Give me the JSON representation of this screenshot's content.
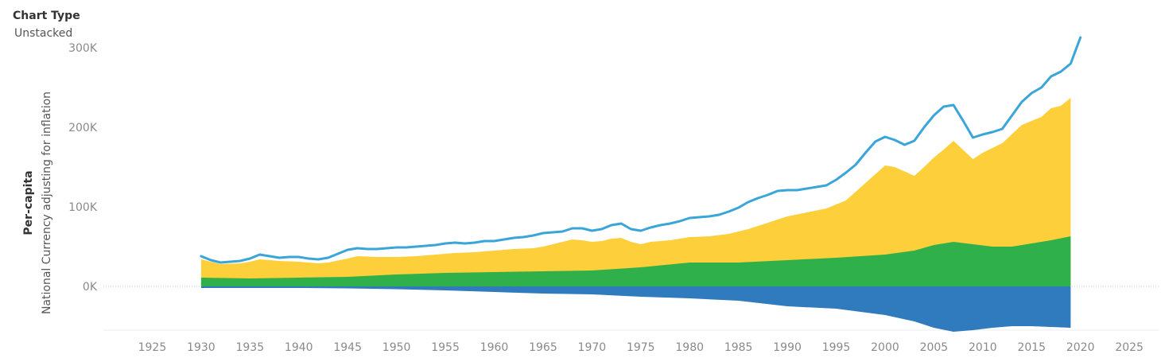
{
  "control": {
    "title": "Chart Type",
    "value": "Unstacked"
  },
  "chart_data": {
    "type": "area",
    "ylabel_line1": "Per-capita",
    "ylabel_line2": "National Currency adjusting for inflation",
    "xlim": [
      1920,
      2028
    ],
    "ylim": [
      -75000,
      330000
    ],
    "x_ticks": [
      1925,
      1930,
      1935,
      1940,
      1945,
      1950,
      1955,
      1960,
      1965,
      1970,
      1975,
      1980,
      1985,
      1990,
      1995,
      2000,
      2005,
      2010,
      2015,
      2020,
      2025
    ],
    "x_tick_labels": [
      "1925",
      "1930",
      "1935",
      "1940",
      "1945",
      "1950",
      "1955",
      "1960",
      "1965",
      "1970",
      "1975",
      "1980",
      "1985",
      "1990",
      "1995",
      "2000",
      "2005",
      "2010",
      "2015",
      "2020",
      "2025"
    ],
    "y_ticks": [
      0,
      100000,
      200000,
      300000
    ],
    "y_tick_labels": [
      "0K",
      "100K",
      "200K",
      "300K"
    ],
    "colors": {
      "yellow": "#FDCF3A",
      "green": "#2FB04A",
      "blue_area": "#2F7BBD",
      "line": "#3AA5D8"
    },
    "series": [
      {
        "color_key": "yellow",
        "kind": "area",
        "x": [
          1930,
          1932,
          1934,
          1935,
          1936,
          1938,
          1940,
          1942,
          1943,
          1945,
          1946,
          1948,
          1950,
          1952,
          1954,
          1955,
          1956,
          1958,
          1960,
          1962,
          1964,
          1965,
          1966,
          1967,
          1968,
          1969,
          1970,
          1971,
          1972,
          1973,
          1974,
          1975,
          1976,
          1978,
          1980,
          1982,
          1984,
          1986,
          1988,
          1990,
          1992,
          1994,
          1996,
          1998,
          2000,
          2001,
          2003,
          2004,
          2005,
          2006,
          2007,
          2009,
          2010,
          2012,
          2014,
          2016,
          2017,
          2018,
          2019
        ],
        "values": [
          34000,
          28000,
          29000,
          31000,
          34000,
          32000,
          31000,
          29000,
          30000,
          35000,
          38000,
          37000,
          37000,
          38000,
          40000,
          41000,
          42000,
          43000,
          45000,
          47000,
          48000,
          50000,
          53000,
          56000,
          59000,
          58000,
          56000,
          57000,
          60000,
          61000,
          56000,
          53000,
          56000,
          58000,
          62000,
          63000,
          66000,
          72000,
          80000,
          88000,
          93000,
          98000,
          108000,
          130000,
          152000,
          150000,
          139000,
          150000,
          162000,
          172000,
          183000,
          160000,
          168000,
          180000,
          203000,
          213000,
          224000,
          227000,
          237000
        ]
      },
      {
        "color_key": "green",
        "kind": "area",
        "x": [
          1930,
          1935,
          1940,
          1945,
          1950,
          1955,
          1960,
          1965,
          1970,
          1975,
          1980,
          1985,
          1990,
          1995,
          2000,
          2003,
          2005,
          2007,
          2009,
          2011,
          2013,
          2015,
          2017,
          2019
        ],
        "values": [
          11000,
          10000,
          11000,
          12000,
          15000,
          17000,
          18000,
          19000,
          20000,
          24000,
          30000,
          30000,
          33000,
          36000,
          40000,
          45000,
          52000,
          56000,
          53000,
          50000,
          50000,
          54000,
          58000,
          63000
        ]
      },
      {
        "color_key": "blue_area",
        "kind": "area",
        "x": [
          1930,
          1935,
          1940,
          1945,
          1950,
          1955,
          1960,
          1965,
          1970,
          1975,
          1980,
          1985,
          1990,
          1995,
          2000,
          2003,
          2005,
          2007,
          2009,
          2011,
          2013,
          2015,
          2017,
          2019
        ],
        "values": [
          -2000,
          -2000,
          -2000,
          -2500,
          -3500,
          -5000,
          -7000,
          -9000,
          -10000,
          -13000,
          -15000,
          -18000,
          -25000,
          -28000,
          -36000,
          -44000,
          -52000,
          -57000,
          -55000,
          -52000,
          -50000,
          -50000,
          -51000,
          -52000
        ]
      },
      {
        "color_key": "line",
        "kind": "line",
        "x": [
          1930,
          1931,
          1932,
          1933,
          1934,
          1935,
          1936,
          1937,
          1938,
          1939,
          1940,
          1941,
          1942,
          1943,
          1944,
          1945,
          1946,
          1947,
          1948,
          1949,
          1950,
          1951,
          1952,
          1953,
          1954,
          1955,
          1956,
          1957,
          1958,
          1959,
          1960,
          1961,
          1962,
          1963,
          1964,
          1965,
          1966,
          1967,
          1968,
          1969,
          1970,
          1971,
          1972,
          1973,
          1974,
          1975,
          1976,
          1977,
          1978,
          1979,
          1980,
          1981,
          1982,
          1983,
          1984,
          1985,
          1986,
          1987,
          1988,
          1989,
          1990,
          1991,
          1992,
          1993,
          1994,
          1995,
          1996,
          1997,
          1998,
          1999,
          2000,
          2001,
          2002,
          2003,
          2004,
          2005,
          2006,
          2007,
          2008,
          2009,
          2010,
          2011,
          2012,
          2013,
          2014,
          2015,
          2016,
          2017,
          2018,
          2019,
          2020
        ],
        "values": [
          38000,
          33000,
          30000,
          31000,
          32000,
          35000,
          40000,
          38000,
          36000,
          37000,
          37000,
          35000,
          34000,
          36000,
          41000,
          46000,
          48000,
          47000,
          47000,
          48000,
          49000,
          49000,
          50000,
          51000,
          52000,
          54000,
          55000,
          54000,
          55000,
          57000,
          57000,
          59000,
          61000,
          62000,
          64000,
          67000,
          68000,
          69000,
          73000,
          73000,
          70000,
          72000,
          77000,
          79000,
          72000,
          70000,
          74000,
          77000,
          79000,
          82000,
          86000,
          87000,
          88000,
          90000,
          94000,
          99000,
          106000,
          111000,
          115000,
          120000,
          121000,
          121000,
          123000,
          125000,
          127000,
          134000,
          143000,
          153000,
          168000,
          182000,
          188000,
          184000,
          178000,
          183000,
          200000,
          215000,
          226000,
          228000,
          208000,
          187000,
          191000,
          194000,
          198000,
          215000,
          232000,
          243000,
          250000,
          264000,
          270000,
          280000,
          313000
        ]
      }
    ]
  }
}
